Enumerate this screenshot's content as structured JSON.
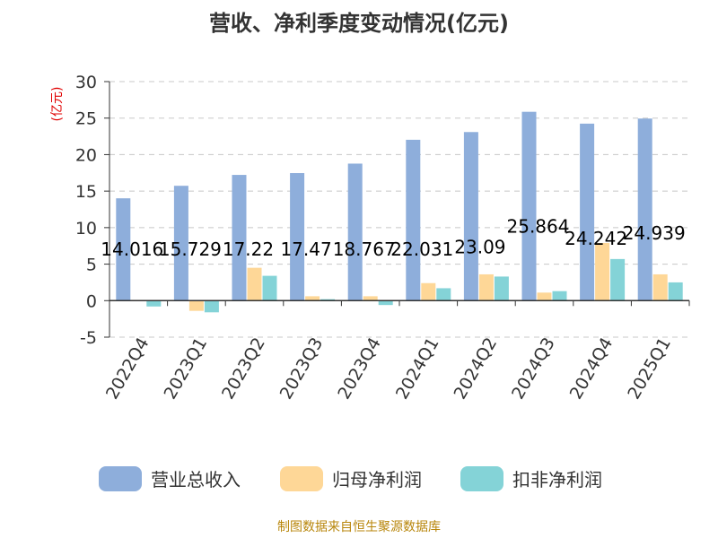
{
  "chart_data": {
    "type": "bar",
    "title": "营收、净利季度变动情况(亿元)",
    "ylabel": "(亿元)",
    "xlabel": "",
    "ylim": [
      -5,
      30
    ],
    "yticks": [
      -5,
      0,
      5,
      10,
      15,
      20,
      25,
      30
    ],
    "grid": true,
    "legend_position": "bottom",
    "categories": [
      "2022Q4",
      "2023Q1",
      "2023Q2",
      "2023Q3",
      "2023Q4",
      "2024Q1",
      "2024Q2",
      "2024Q3",
      "2024Q4",
      "2025Q1"
    ],
    "series": [
      {
        "name": "营业总收入",
        "color": "#8eaedb",
        "values": [
          14.016,
          15.729,
          17.22,
          17.47,
          18.767,
          22.031,
          23.09,
          25.864,
          24.242,
          24.939
        ],
        "labels": [
          "14.016",
          "15.729",
          "17.22",
          "17.47",
          "18.767",
          "22.031",
          "23.09",
          "25.864",
          "24.242",
          "24.939"
        ]
      },
      {
        "name": "归母净利润",
        "color": "#fed797",
        "values": [
          0.1,
          -1.4,
          4.5,
          0.6,
          0.6,
          2.4,
          3.6,
          1.1,
          7.9,
          3.6
        ]
      },
      {
        "name": "扣非净利润",
        "color": "#84d3d7",
        "values": [
          -0.8,
          -1.6,
          3.4,
          0.2,
          -0.6,
          1.7,
          3.3,
          1.3,
          5.7,
          2.5
        ]
      }
    ],
    "source": "制图数据来自恒生聚源数据库"
  }
}
